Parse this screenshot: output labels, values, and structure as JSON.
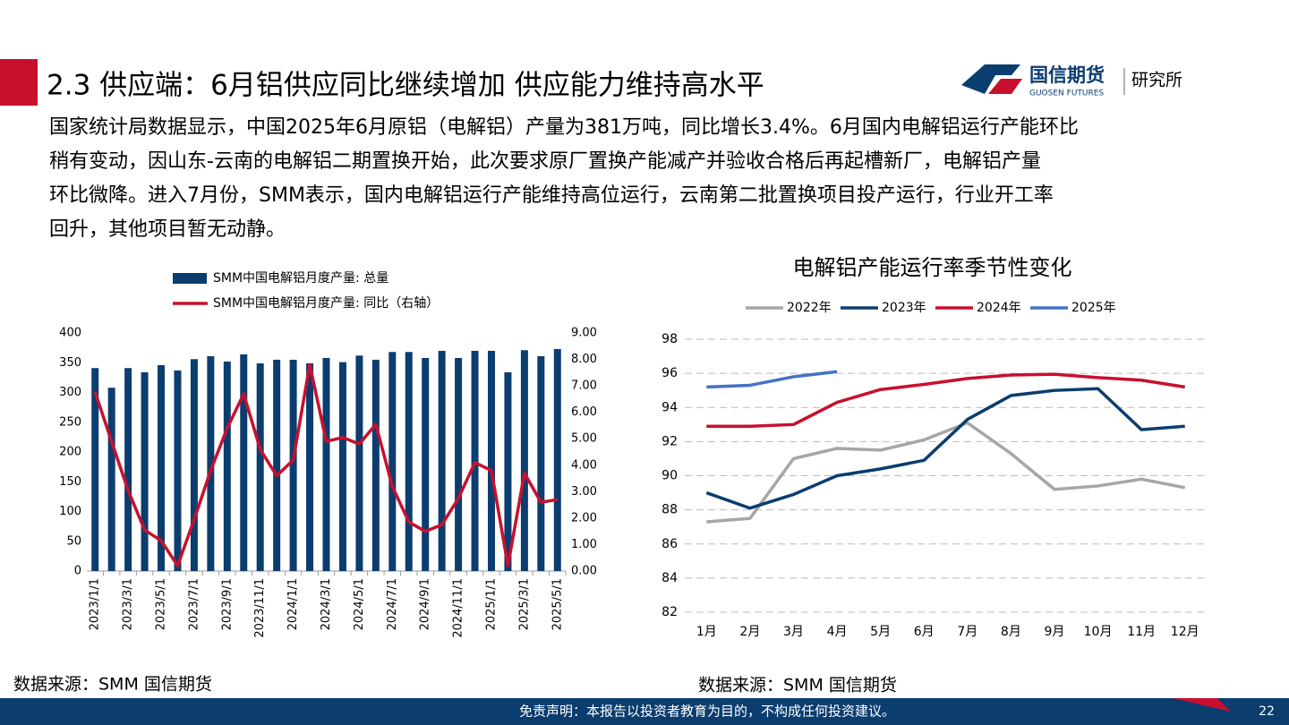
{
  "header": {
    "title": "2.3 供应端：6月铝供应同比继续增加 供应能力维持高水平"
  },
  "logo": {
    "name": "国信期货",
    "english": "GUOSEN FUTURES",
    "unit": "研究所"
  },
  "body": {
    "lines": [
      "国家统计局数据显示，中国2025年6月原铝（电解铝）产量为381万吨，同比增长3.4%。6月国内电解铝运行产能环比",
      "稍有变动，因山东-云南的电解铝二期置换开始，此次要求原厂置换产能减产并验收合格后再起槽新厂，电解铝产量",
      "环比微降。进入7月份，SMM表示，国内电解铝运行产能维持高位运行，云南第二批置换项目投产运行，行业开工率",
      "回升，其他项目暂无动静。"
    ]
  },
  "chart_data": [
    {
      "type": "bar_line",
      "categories": [
        "2023/1/1",
        null,
        "2023/3/1",
        null,
        "2023/5/1",
        null,
        "2023/7/1",
        null,
        "2023/9/1",
        null,
        "2023/11/1",
        null,
        "2024/1/1",
        null,
        "2024/3/1",
        null,
        "2024/5/1",
        null,
        "2024/7/1",
        null,
        "2024/9/1",
        null,
        "2024/11/1",
        null,
        "2025/1/1",
        null,
        "2025/3/1",
        null,
        "2025/5/1"
      ],
      "series": [
        {
          "name": "SMM中国电解铝月度产量: 总量",
          "color": "#0b3d6f",
          "values": [
            341,
            308,
            341,
            334,
            346,
            337,
            356,
            361,
            352,
            364,
            349,
            355,
            355,
            349,
            358,
            351,
            362,
            355,
            368,
            368,
            358,
            370,
            358,
            370,
            370,
            334,
            371,
            361,
            373
          ]
        },
        {
          "name": "SMM中国电解铝月度产量: 同比（右轴）",
          "color": "#c8102e",
          "axis": "y2",
          "values": [
            6.77,
            4.9,
            3.05,
            1.55,
            1.15,
            0.2,
            1.95,
            3.8,
            5.4,
            6.7,
            4.6,
            3.6,
            4.2,
            7.8,
            4.9,
            5.05,
            4.8,
            5.55,
            3.2,
            1.85,
            1.5,
            1.75,
            2.75,
            4.1,
            3.8,
            0.2,
            3.7,
            2.6,
            2.7
          ]
        }
      ],
      "ylim": [
        0,
        400
      ],
      "yticks": [
        0,
        50,
        100,
        150,
        200,
        250,
        300,
        350,
        400
      ],
      "y2lim": [
        0,
        9
      ],
      "y2ticks": [
        {
          "value": 0,
          "label": "0.00"
        },
        {
          "value": 1,
          "label": "1.00"
        },
        {
          "value": 2,
          "label": "2.00"
        },
        {
          "value": 3,
          "label": "3.00"
        },
        {
          "value": 4,
          "label": "4.00"
        },
        {
          "value": 5,
          "label": "5.00"
        },
        {
          "value": 6,
          "label": "6.00"
        },
        {
          "value": 7,
          "label": "7.00"
        },
        {
          "value": 8,
          "label": "8.00"
        },
        {
          "value": 9,
          "label": "9.00"
        }
      ],
      "grid": false,
      "source": "数据来源：SMM 国信期货"
    },
    {
      "type": "line",
      "title": "电解铝产能运行率季节性变化",
      "categories": [
        "1月",
        "2月",
        "3月",
        "4月",
        "5月",
        "6月",
        "7月",
        "8月",
        "9月",
        "10月",
        "11月",
        "12月"
      ],
      "series": [
        {
          "name": "2022年",
          "color": "#a6a6a6",
          "values": [
            87.3,
            87.5,
            91.0,
            91.6,
            91.5,
            92.1,
            93.1,
            91.3,
            89.2,
            89.4,
            89.8,
            89.3
          ]
        },
        {
          "name": "2023年",
          "color": "#0b3d6f",
          "values": [
            89.0,
            88.1,
            88.9,
            90.0,
            90.4,
            90.9,
            93.3,
            94.7,
            95.0,
            95.1,
            92.7,
            92.9
          ]
        },
        {
          "name": "2024年",
          "color": "#c8102e",
          "values": [
            92.9,
            92.9,
            93.0,
            94.3,
            95.05,
            95.35,
            95.7,
            95.9,
            95.95,
            95.75,
            95.6,
            95.2
          ]
        },
        {
          "name": "2025年",
          "color": "#4472c4",
          "values": [
            95.2,
            95.3,
            95.8,
            96.1,
            null,
            null,
            null,
            null,
            null,
            null,
            null,
            null
          ]
        }
      ],
      "ylim": [
        82,
        98
      ],
      "yticks": [
        82,
        84,
        86,
        88,
        90,
        92,
        94,
        96,
        98
      ],
      "grid": true,
      "source": "数据来源：SMM 国信期货"
    }
  ],
  "footer": {
    "disclaimer": "免责声明：本报告以投资者教育为目的，不构成任何投资建议。",
    "page": "22"
  }
}
